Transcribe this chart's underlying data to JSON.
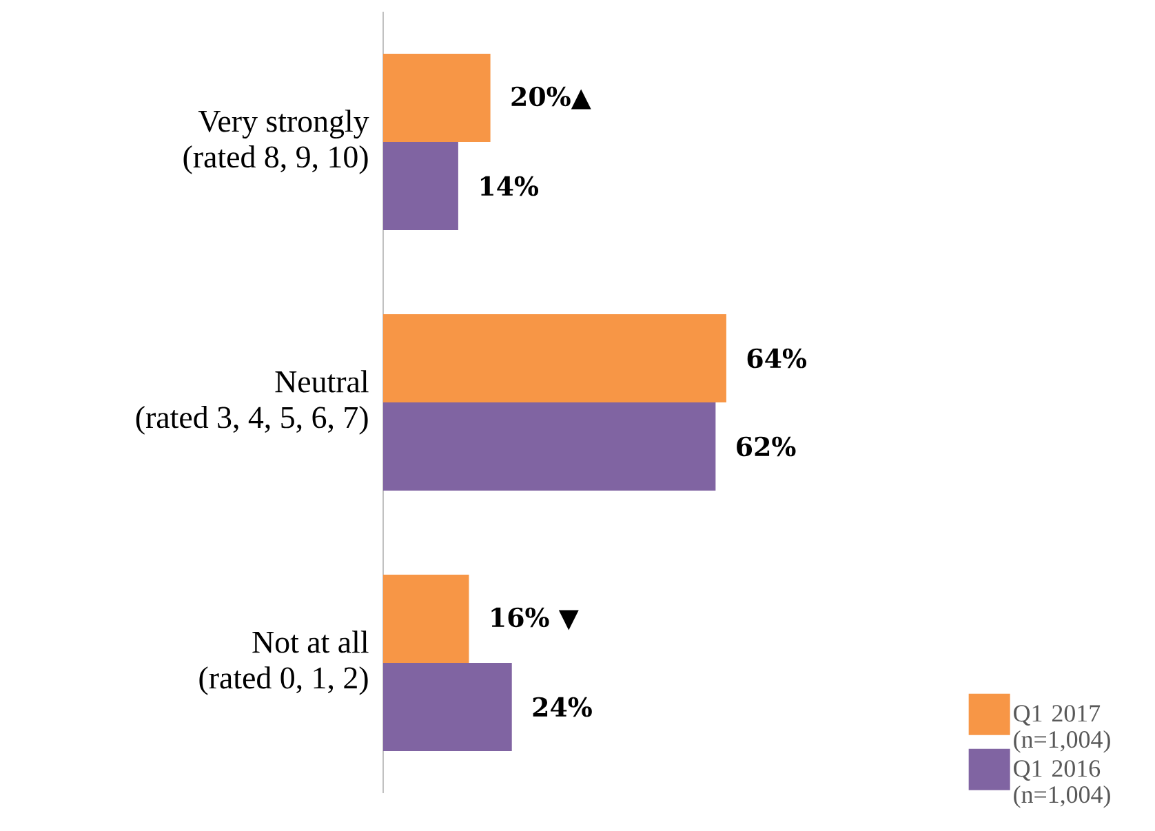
{
  "chart_data": {
    "type": "bar",
    "orientation": "horizontal",
    "categories": [
      "Very strongly (rated 8, 9, 10)",
      "Neutral (rated 3, 4, 5, 6, 7)",
      "Not at all (rated 0, 1, 2)"
    ],
    "series": [
      {
        "name": "Q1 2017 (n=1,004)",
        "color": "#f79646",
        "values": [
          20,
          64,
          16
        ],
        "value_labels": [
          "20%▲",
          "64%",
          "16% ▼"
        ]
      },
      {
        "name": "Q1 2016 (n=1,004)",
        "color": "#8064a2",
        "values": [
          14,
          62,
          24
        ],
        "value_labels": [
          "14%",
          "62%",
          "24%"
        ]
      }
    ],
    "legend": "bottom right"
  }
}
